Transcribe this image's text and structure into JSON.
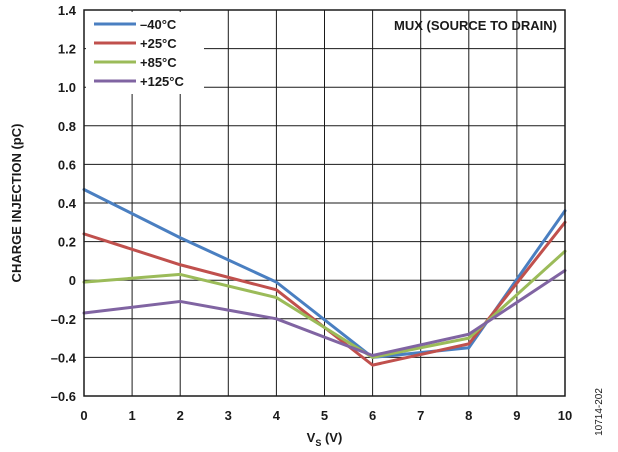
{
  "chart_data": {
    "type": "line",
    "xlabel": "V",
    "xlabel_sub": "S",
    "xlabel_unit": " (V)",
    "ylabel": "CHARGE INJECTION (pC)",
    "annotation": "MUX (SOURCE TO DRAIN)",
    "figure_id": "10714-202",
    "xlim": [
      0,
      10
    ],
    "ylim": [
      -0.6,
      1.4
    ],
    "x_ticks": [
      0,
      1,
      2,
      3,
      4,
      5,
      6,
      7,
      8,
      9,
      10
    ],
    "x_tick_labels": [
      "0",
      "1",
      "2",
      "3",
      "4",
      "5",
      "6",
      "7",
      "8",
      "9",
      "10"
    ],
    "y_ticks": [
      -0.6,
      -0.4,
      -0.2,
      0,
      0.2,
      0.4,
      0.6,
      0.8,
      1.0,
      1.2,
      1.4
    ],
    "y_tick_labels": [
      "–0.6",
      "–0.4",
      "–0.2",
      "0",
      "0.2",
      "0.4",
      "0.6",
      "0.8",
      "1.0",
      "1.2",
      "1.4"
    ],
    "grid": true,
    "legend_position": "top-left",
    "series": [
      {
        "name": "–40°C",
        "color": "#4a7fc1",
        "x": [
          0,
          2,
          4,
          6,
          8,
          10
        ],
        "y": [
          0.47,
          0.22,
          -0.01,
          -0.4,
          -0.35,
          0.36
        ]
      },
      {
        "name": "+25°C",
        "color": "#c0504d",
        "x": [
          0,
          2,
          4,
          6,
          8,
          10
        ],
        "y": [
          0.24,
          0.08,
          -0.05,
          -0.44,
          -0.33,
          0.3
        ]
      },
      {
        "name": "+85°C",
        "color": "#9bbb59",
        "x": [
          0,
          2,
          4,
          6,
          8,
          10
        ],
        "y": [
          -0.01,
          0.03,
          -0.09,
          -0.4,
          -0.3,
          0.15
        ]
      },
      {
        "name": "+125°C",
        "color": "#8064a2",
        "x": [
          0,
          2,
          4,
          6,
          8,
          10
        ],
        "y": [
          -0.17,
          -0.11,
          -0.2,
          -0.39,
          -0.28,
          0.05
        ]
      }
    ]
  }
}
